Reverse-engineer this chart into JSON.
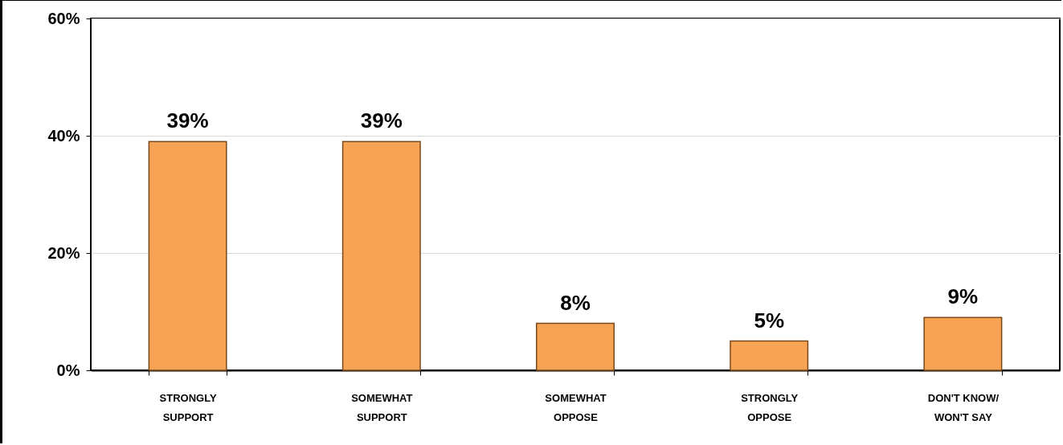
{
  "chart_data": {
    "type": "bar",
    "categories": [
      "STRONGLY SUPPORT",
      "SOMEWHAT SUPPORT",
      "SOMEWHAT OPPOSE",
      "STRONGLY OPPOSE",
      "DON'T KNOW/ WON'T SAY"
    ],
    "values": [
      39,
      39,
      8,
      5,
      9
    ],
    "color": "#f7a354",
    "ylim": [
      0,
      60
    ],
    "yticks": [
      {
        "value": 0,
        "label": "0%"
      },
      {
        "value": 20,
        "label": "20%"
      },
      {
        "value": 40,
        "label": "40%"
      },
      {
        "value": 60,
        "label": "60%"
      }
    ],
    "grid": "y",
    "data_labels": true,
    "value_labels": [
      "39%",
      "39%",
      "8%",
      "5%",
      "9%"
    ]
  }
}
